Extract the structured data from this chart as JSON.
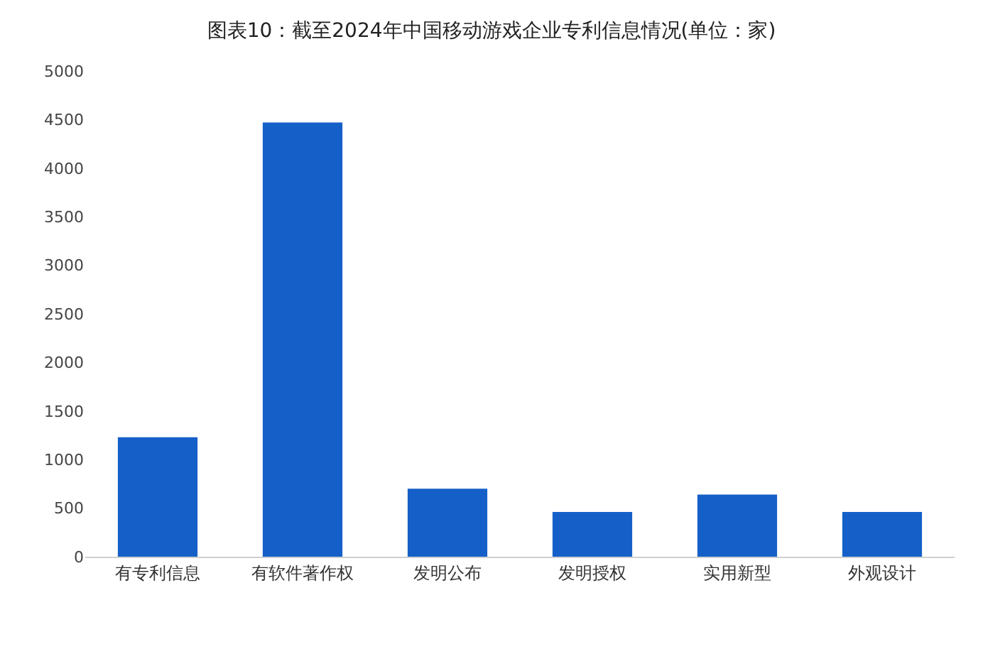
{
  "chart_data": {
    "type": "bar",
    "title": "图表10：截至2024年中国移动游戏企业专利信息情况(单位：家)",
    "categories": [
      "有专利信息",
      "有软件著作权",
      "发明公布",
      "发明授权",
      "实用新型",
      "外观设计"
    ],
    "values": [
      1230,
      4470,
      700,
      460,
      640,
      460
    ],
    "color": "#1560c8",
    "ylim": [
      0,
      5000
    ],
    "yticks": [
      0,
      500,
      1000,
      1500,
      2000,
      2500,
      3000,
      3500,
      4000,
      4500,
      5000
    ],
    "grid": false
  }
}
